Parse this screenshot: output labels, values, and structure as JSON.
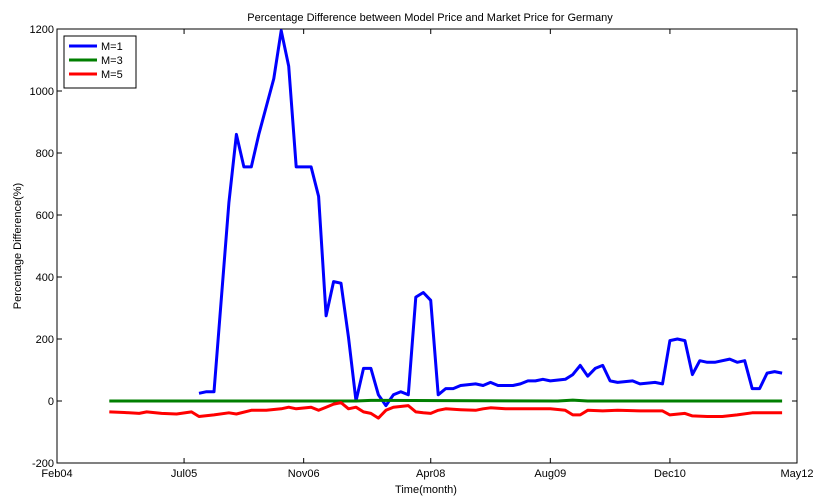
{
  "chart_data": {
    "type": "line",
    "title": "Percentage Difference between Model Price and Market Price for Germany",
    "xlabel": "Time(month)",
    "ylabel": "Percentage Difference(%)",
    "xlim": [
      "2004-02",
      "2012-05"
    ],
    "ylim": [
      -200,
      1200
    ],
    "xticks": [
      {
        "value": "2004-02",
        "label": "Feb04"
      },
      {
        "value": "2005-07",
        "label": "Jul05"
      },
      {
        "value": "2006-11",
        "label": "Nov06"
      },
      {
        "value": "2008-04",
        "label": "Apr08"
      },
      {
        "value": "2009-08",
        "label": "Aug09"
      },
      {
        "value": "2010-12",
        "label": "Dec10"
      },
      {
        "value": "2012-05",
        "label": "May12"
      }
    ],
    "yticks": [
      -200,
      0,
      200,
      400,
      600,
      800,
      1000,
      1200
    ],
    "grid": false,
    "legend": "top-left",
    "series": [
      {
        "name": "M=1",
        "color": "#0000ff",
        "points": [
          [
            "2005-09",
            25
          ],
          [
            "2005-10",
            30
          ],
          [
            "2005-11",
            30
          ],
          [
            "2006-01",
            640
          ],
          [
            "2006-02",
            860
          ],
          [
            "2006-03",
            755
          ],
          [
            "2006-04",
            755
          ],
          [
            "2006-05",
            860
          ],
          [
            "2006-07",
            1040
          ],
          [
            "2006-08",
            1195
          ],
          [
            "2006-09",
            1080
          ],
          [
            "2006-10",
            755
          ],
          [
            "2006-11",
            755
          ],
          [
            "2006-12",
            755
          ],
          [
            "2007-01",
            660
          ],
          [
            "2007-02",
            275
          ],
          [
            "2007-03",
            385
          ],
          [
            "2007-04",
            380
          ],
          [
            "2007-05",
            205
          ],
          [
            "2007-06",
            0
          ],
          [
            "2007-07",
            105
          ],
          [
            "2007-08",
            105
          ],
          [
            "2007-09",
            20
          ],
          [
            "2007-10",
            -15
          ],
          [
            "2007-11",
            20
          ],
          [
            "2007-12",
            30
          ],
          [
            "2008-01",
            20
          ],
          [
            "2008-02",
            335
          ],
          [
            "2008-03",
            350
          ],
          [
            "2008-04",
            325
          ],
          [
            "2008-05",
            20
          ],
          [
            "2008-06",
            40
          ],
          [
            "2008-07",
            40
          ],
          [
            "2008-08",
            50
          ],
          [
            "2008-10",
            55
          ],
          [
            "2008-11",
            50
          ],
          [
            "2008-12",
            60
          ],
          [
            "2009-01",
            50
          ],
          [
            "2009-03",
            50
          ],
          [
            "2009-04",
            55
          ],
          [
            "2009-05",
            65
          ],
          [
            "2009-06",
            65
          ],
          [
            "2009-07",
            70
          ],
          [
            "2009-08",
            65
          ],
          [
            "2009-10",
            70
          ],
          [
            "2009-11",
            85
          ],
          [
            "2009-12",
            115
          ],
          [
            "2010-01",
            80
          ],
          [
            "2010-02",
            105
          ],
          [
            "2010-03",
            115
          ],
          [
            "2010-04",
            65
          ],
          [
            "2010-05",
            60
          ],
          [
            "2010-07",
            65
          ],
          [
            "2010-08",
            55
          ],
          [
            "2010-10",
            60
          ],
          [
            "2010-11",
            55
          ],
          [
            "2010-12",
            195
          ],
          [
            "2011-01",
            200
          ],
          [
            "2011-02",
            195
          ],
          [
            "2011-03",
            85
          ],
          [
            "2011-04",
            130
          ],
          [
            "2011-05",
            125
          ],
          [
            "2011-06",
            125
          ],
          [
            "2011-08",
            135
          ],
          [
            "2011-09",
            125
          ],
          [
            "2011-10",
            130
          ],
          [
            "2011-11",
            40
          ],
          [
            "2011-12",
            40
          ],
          [
            "2012-01",
            90
          ],
          [
            "2012-02",
            95
          ],
          [
            "2012-03",
            90
          ]
        ]
      },
      {
        "name": "M=3",
        "color": "#007f00",
        "points": [
          [
            "2004-09",
            0
          ],
          [
            "2007-06",
            0
          ],
          [
            "2007-08",
            2
          ],
          [
            "2009-09",
            0
          ],
          [
            "2009-11",
            3
          ],
          [
            "2010-01",
            0
          ],
          [
            "2012-03",
            0
          ]
        ]
      },
      {
        "name": "M=5",
        "color": "#ff0000",
        "points": [
          [
            "2004-09",
            -35
          ],
          [
            "2004-11",
            -37
          ],
          [
            "2005-01",
            -40
          ],
          [
            "2005-02",
            -35
          ],
          [
            "2005-04",
            -40
          ],
          [
            "2005-06",
            -42
          ],
          [
            "2005-08",
            -35
          ],
          [
            "2005-09",
            -50
          ],
          [
            "2005-11",
            -45
          ],
          [
            "2006-01",
            -38
          ],
          [
            "2006-02",
            -42
          ],
          [
            "2006-04",
            -30
          ],
          [
            "2006-06",
            -30
          ],
          [
            "2006-08",
            -25
          ],
          [
            "2006-09",
            -20
          ],
          [
            "2006-10",
            -25
          ],
          [
            "2006-12",
            -20
          ],
          [
            "2007-01",
            -30
          ],
          [
            "2007-02",
            -20
          ],
          [
            "2007-03",
            -10
          ],
          [
            "2007-04",
            -5
          ],
          [
            "2007-05",
            -25
          ],
          [
            "2007-06",
            -20
          ],
          [
            "2007-07",
            -35
          ],
          [
            "2007-08",
            -40
          ],
          [
            "2007-09",
            -55
          ],
          [
            "2007-10",
            -30
          ],
          [
            "2007-11",
            -20
          ],
          [
            "2008-01",
            -15
          ],
          [
            "2008-02",
            -35
          ],
          [
            "2008-03",
            -38
          ],
          [
            "2008-04",
            -40
          ],
          [
            "2008-05",
            -30
          ],
          [
            "2008-06",
            -25
          ],
          [
            "2008-08",
            -28
          ],
          [
            "2008-10",
            -30
          ],
          [
            "2008-11",
            -25
          ],
          [
            "2008-12",
            -22
          ],
          [
            "2009-02",
            -25
          ],
          [
            "2009-04",
            -25
          ],
          [
            "2009-06",
            -25
          ],
          [
            "2009-08",
            -25
          ],
          [
            "2009-10",
            -30
          ],
          [
            "2009-11",
            -45
          ],
          [
            "2009-12",
            -45
          ],
          [
            "2010-01",
            -30
          ],
          [
            "2010-03",
            -32
          ],
          [
            "2010-05",
            -30
          ],
          [
            "2010-08",
            -32
          ],
          [
            "2010-11",
            -32
          ],
          [
            "2010-12",
            -45
          ],
          [
            "2011-02",
            -40
          ],
          [
            "2011-03",
            -48
          ],
          [
            "2011-05",
            -50
          ],
          [
            "2011-07",
            -50
          ],
          [
            "2011-09",
            -45
          ],
          [
            "2011-11",
            -38
          ],
          [
            "2012-01",
            -38
          ],
          [
            "2012-03",
            -38
          ]
        ]
      }
    ]
  }
}
